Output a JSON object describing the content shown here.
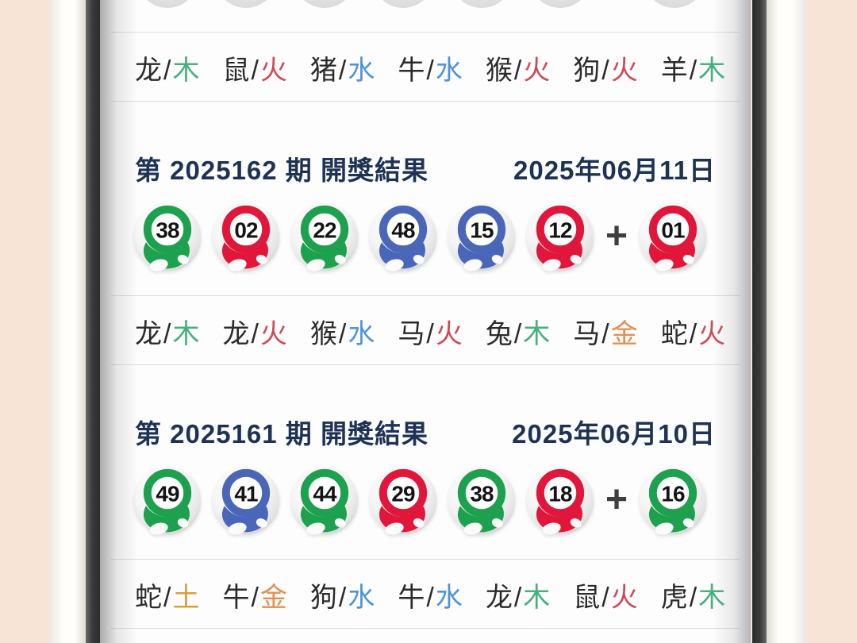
{
  "slash": "/",
  "colors": {
    "header_navy": "#1e3354",
    "ball_green": "#1da14e",
    "ball_red": "#e0163a",
    "ball_blue": "#4a66b8",
    "element_wood": "#47b07c",
    "element_fire": "#cd4b57",
    "element_water": "#4f94d6",
    "element_metal": "#e29055",
    "element_earth": "#d4a03c"
  },
  "top_zodiac": [
    {
      "animal": "龙",
      "element": "木",
      "element_key": "wood"
    },
    {
      "animal": "鼠",
      "element": "火",
      "element_key": "fire"
    },
    {
      "animal": "猪",
      "element": "水",
      "element_key": "water"
    },
    {
      "animal": "牛",
      "element": "水",
      "element_key": "water"
    },
    {
      "animal": "猴",
      "element": "火",
      "element_key": "fire"
    },
    {
      "animal": "狗",
      "element": "火",
      "element_key": "fire"
    },
    {
      "animal": "羊",
      "element": "木",
      "element_key": "wood"
    }
  ],
  "draws": [
    {
      "title": "第 2025162 期 開獎結果",
      "date": "2025年06月11日",
      "plus_sign": "+",
      "balls": [
        {
          "number": "38",
          "color": "green"
        },
        {
          "number": "02",
          "color": "red"
        },
        {
          "number": "22",
          "color": "green"
        },
        {
          "number": "48",
          "color": "blue"
        },
        {
          "number": "15",
          "color": "blue"
        },
        {
          "number": "12",
          "color": "red"
        }
      ],
      "special_ball": {
        "number": "01",
        "color": "red"
      },
      "zodiac": [
        {
          "animal": "龙",
          "element": "木",
          "element_key": "wood"
        },
        {
          "animal": "龙",
          "element": "火",
          "element_key": "fire"
        },
        {
          "animal": "猴",
          "element": "水",
          "element_key": "water"
        },
        {
          "animal": "马",
          "element": "火",
          "element_key": "fire"
        },
        {
          "animal": "兔",
          "element": "木",
          "element_key": "wood"
        },
        {
          "animal": "马",
          "element": "金",
          "element_key": "metal"
        },
        {
          "animal": "蛇",
          "element": "火",
          "element_key": "fire"
        }
      ]
    },
    {
      "title": "第 2025161 期 開獎結果",
      "date": "2025年06月10日",
      "plus_sign": "+",
      "balls": [
        {
          "number": "49",
          "color": "green"
        },
        {
          "number": "41",
          "color": "blue"
        },
        {
          "number": "44",
          "color": "green"
        },
        {
          "number": "29",
          "color": "red"
        },
        {
          "number": "38",
          "color": "green"
        },
        {
          "number": "18",
          "color": "red"
        }
      ],
      "special_ball": {
        "number": "16",
        "color": "green"
      },
      "zodiac": [
        {
          "animal": "蛇",
          "element": "土",
          "element_key": "earth"
        },
        {
          "animal": "牛",
          "element": "金",
          "element_key": "metal"
        },
        {
          "animal": "狗",
          "element": "水",
          "element_key": "water"
        },
        {
          "animal": "牛",
          "element": "水",
          "element_key": "water"
        },
        {
          "animal": "龙",
          "element": "木",
          "element_key": "wood"
        },
        {
          "animal": "鼠",
          "element": "火",
          "element_key": "fire"
        },
        {
          "animal": "虎",
          "element": "木",
          "element_key": "wood"
        }
      ]
    }
  ]
}
